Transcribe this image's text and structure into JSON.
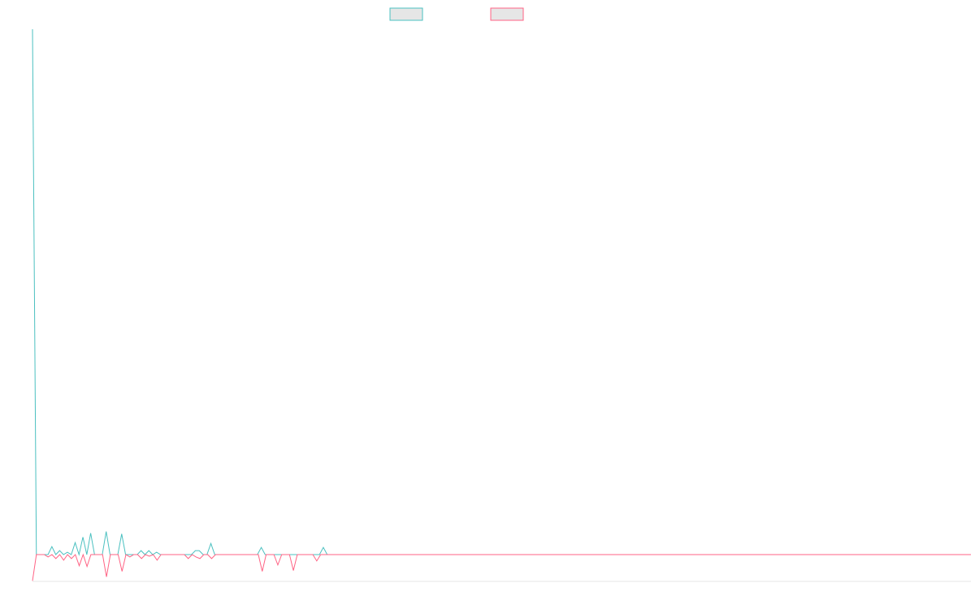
{
  "colors": {
    "series_a": "#4bc0c0",
    "series_b": "#ff6384",
    "swatch_fill": "#e6e6e6",
    "baseline": "#e6e6e6"
  },
  "chart_data": {
    "type": "line",
    "title": "",
    "xlabel": "",
    "ylabel": "",
    "legend": {
      "position": "top",
      "entries": [
        "",
        ""
      ]
    },
    "grid": false,
    "ylim": [
      -33,
      660
    ],
    "series": [
      {
        "values": [
          660,
          0,
          0,
          0,
          0,
          10,
          0,
          5,
          0,
          3,
          0,
          15,
          0,
          22,
          0,
          27,
          0,
          0,
          0,
          29,
          0,
          0,
          0,
          26,
          0,
          0,
          0,
          0,
          5,
          0,
          5,
          0,
          3,
          0,
          0,
          0,
          0,
          0,
          0,
          0,
          0,
          0,
          5,
          5,
          0,
          0,
          14,
          0,
          0,
          0,
          0,
          0,
          0,
          0,
          0,
          0,
          0,
          0,
          0,
          9,
          0,
          0,
          0,
          0,
          0,
          0,
          0,
          0,
          0,
          0,
          0,
          0,
          0,
          0,
          0,
          9,
          0,
          0,
          0,
          0,
          0,
          0,
          0,
          0,
          0,
          0,
          0,
          0,
          0,
          0,
          0,
          0,
          0,
          0,
          0,
          0,
          0,
          0,
          0,
          0,
          0,
          0,
          0,
          0,
          0,
          0,
          0,
          0,
          0,
          0,
          0,
          0,
          0,
          0,
          0,
          0,
          0,
          0,
          0,
          0,
          0,
          0,
          0,
          0,
          0,
          0,
          0,
          0,
          0,
          0,
          0,
          0,
          0,
          0,
          0,
          0,
          0,
          0,
          0,
          0,
          0,
          0,
          0,
          0,
          0,
          0,
          0,
          0,
          0,
          0,
          0,
          0,
          0,
          0,
          0,
          0,
          0,
          0,
          0,
          0,
          0,
          0,
          0,
          0,
          0,
          0,
          0,
          0,
          0,
          0,
          0,
          0,
          0,
          0,
          0,
          0,
          0,
          0,
          0,
          0,
          0,
          0,
          0,
          0,
          0,
          0,
          0,
          0,
          0,
          0,
          0,
          0,
          0,
          0,
          0,
          0,
          0,
          0,
          0,
          0,
          0,
          0,
          0,
          0,
          0,
          0,
          0,
          0,
          0,
          0,
          0,
          0,
          0,
          0,
          0,
          0,
          0,
          0,
          0,
          0,
          0,
          0,
          0,
          0,
          0,
          0,
          0,
          0,
          0,
          0,
          0,
          0,
          0,
          0,
          0,
          0,
          0,
          0,
          0,
          0,
          0,
          0,
          0
        ]
      },
      {
        "values": [
          -33,
          0,
          0,
          0,
          -3,
          0,
          -5,
          0,
          -7,
          0,
          -5,
          0,
          -14,
          0,
          -15,
          0,
          0,
          0,
          0,
          -28,
          0,
          0,
          0,
          -21,
          0,
          -3,
          0,
          0,
          -5,
          0,
          -2,
          0,
          -7,
          0,
          0,
          0,
          0,
          0,
          0,
          0,
          -5,
          0,
          -3,
          -5,
          0,
          0,
          -5,
          0,
          0,
          0,
          0,
          0,
          0,
          0,
          0,
          0,
          0,
          0,
          0,
          -21,
          0,
          0,
          0,
          -13,
          0,
          0,
          0,
          -20,
          0,
          0,
          0,
          0,
          0,
          -8,
          0,
          0,
          0,
          0,
          0,
          0,
          0,
          0,
          0,
          0,
          0,
          0,
          0,
          0,
          0,
          0,
          0,
          0,
          0,
          0,
          0,
          0,
          0,
          0,
          0,
          0,
          0,
          0,
          0,
          0,
          0,
          0,
          0,
          0,
          0,
          0,
          0,
          0,
          0,
          0,
          0,
          0,
          0,
          0,
          0,
          0,
          0,
          0,
          0,
          0,
          0,
          0,
          0,
          0,
          0,
          0,
          0,
          0,
          0,
          0,
          0,
          0,
          0,
          0,
          0,
          0,
          0,
          0,
          0,
          0,
          0,
          0,
          0,
          0,
          0,
          0,
          0,
          0,
          0,
          0,
          0,
          0,
          0,
          0,
          0,
          0,
          0,
          0,
          0,
          0,
          0,
          0,
          0,
          0,
          0,
          0,
          0,
          0,
          0,
          0,
          0,
          0,
          0,
          0,
          0,
          0,
          0,
          0,
          0,
          0,
          0,
          0,
          0,
          0,
          0,
          0,
          0,
          0,
          0,
          0,
          0,
          0,
          0,
          0,
          0,
          0,
          0,
          0,
          0,
          0,
          0,
          0,
          0,
          0,
          0,
          0,
          0,
          0,
          0,
          0,
          0,
          0,
          0,
          0,
          0,
          0,
          0,
          0,
          0,
          0,
          0,
          0,
          0,
          0,
          0,
          0,
          0,
          0,
          0,
          0,
          0,
          0,
          0,
          0,
          0,
          0,
          0,
          0
        ]
      }
    ]
  }
}
